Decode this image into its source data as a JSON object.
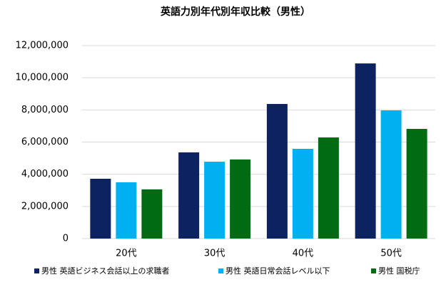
{
  "chart_data": {
    "type": "bar",
    "title": "英語力別年代別年収比較（男性）",
    "categories": [
      "20代",
      "30代",
      "40代",
      "50代"
    ],
    "series": [
      {
        "name": "男性 英語ビジネス会話以上の求職者",
        "color": "#0d2261",
        "values": [
          3720000,
          5360000,
          8370000,
          10890000
        ]
      },
      {
        "name": "男性 英語日常会話レベル以下",
        "color": "#00b0f0",
        "values": [
          3500000,
          4780000,
          5580000,
          7970000
        ]
      },
      {
        "name": "男性 国税庁",
        "color": "#006b12",
        "values": [
          3060000,
          4920000,
          6290000,
          6820000
        ]
      }
    ],
    "ylim": [
      0,
      12000000
    ],
    "yticks": [
      0,
      {
        "value": 2000000,
        "label": "2,000,000"
      },
      {
        "value": 4000000,
        "label": "4,000,000"
      },
      {
        "value": 6000000,
        "label": "6,000,000"
      },
      {
        "value": 8000000,
        "label": "8,000,000"
      },
      {
        "value": 10000000,
        "label": "10,000,000"
      },
      {
        "value": 12000000,
        "label": "12,000,000"
      }
    ],
    "grid": true,
    "legend": "bottom"
  }
}
